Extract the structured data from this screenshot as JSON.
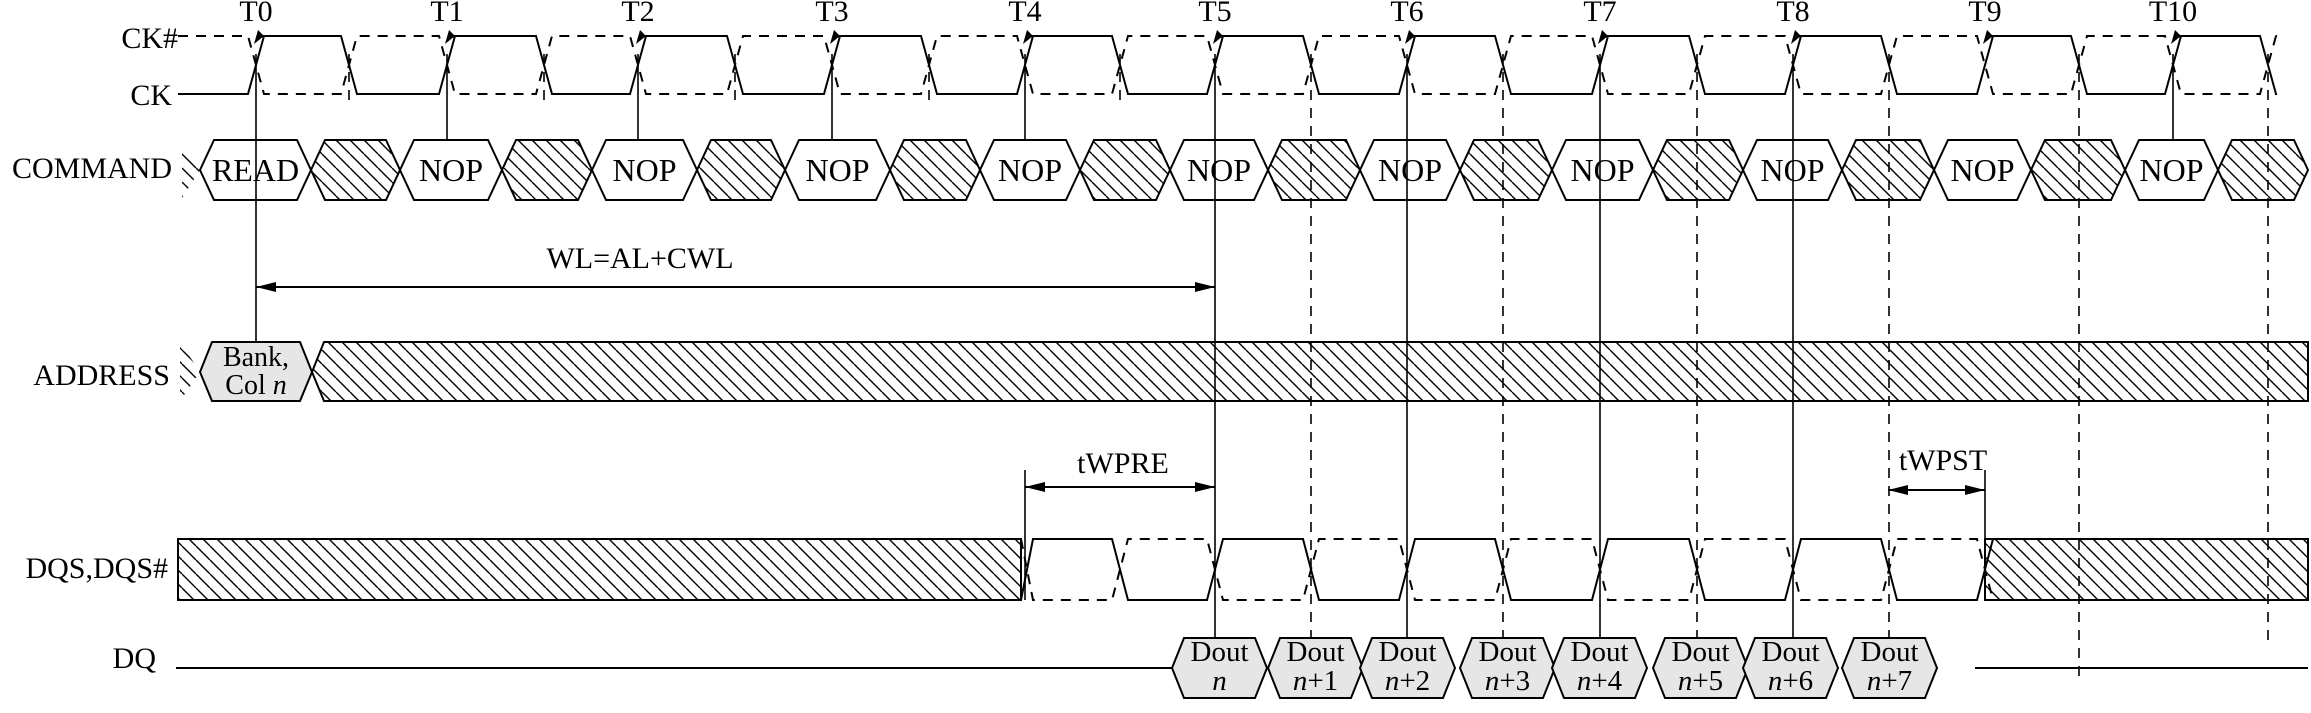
{
  "signals": {
    "ck_n": "CK#",
    "ck": "CK",
    "command": "COMMAND",
    "address": "ADDRESS",
    "dqs": "DQS,DQS#",
    "dq": "DQ"
  },
  "ticks": [
    "T0",
    "T1",
    "T2",
    "T3",
    "T4",
    "T5",
    "T6",
    "T7",
    "T8",
    "T9",
    "T10"
  ],
  "commands": [
    "READ",
    "NOP",
    "NOP",
    "NOP",
    "NOP",
    "NOP",
    "NOP",
    "NOP",
    "NOP",
    "NOP",
    "NOP"
  ],
  "address": {
    "line1": "Bank,",
    "line2_prefix": "Col ",
    "line2_italic": "n"
  },
  "annotations": {
    "wl": "WL=AL+CWL",
    "twpre": "tWPRE",
    "twpst": "tWPST"
  },
  "dq_cells": [
    {
      "top": "Dout",
      "n": "n",
      "suffix": ""
    },
    {
      "top": "Dout",
      "n": "n",
      "suffix": "+1"
    },
    {
      "top": "Dout",
      "n": "n",
      "suffix": "+2"
    },
    {
      "top": "Dout",
      "n": "n",
      "suffix": "+3"
    },
    {
      "top": "Dout",
      "n": "n",
      "suffix": "+4"
    },
    {
      "top": "Dout",
      "n": "n",
      "suffix": "+5"
    },
    {
      "top": "Dout",
      "n": "n",
      "suffix": "+6"
    },
    {
      "top": "Dout",
      "n": "n",
      "suffix": "+7"
    }
  ],
  "colors": {
    "line": "#000000",
    "fill": "#e6e6e6",
    "background": "#ffffff"
  }
}
